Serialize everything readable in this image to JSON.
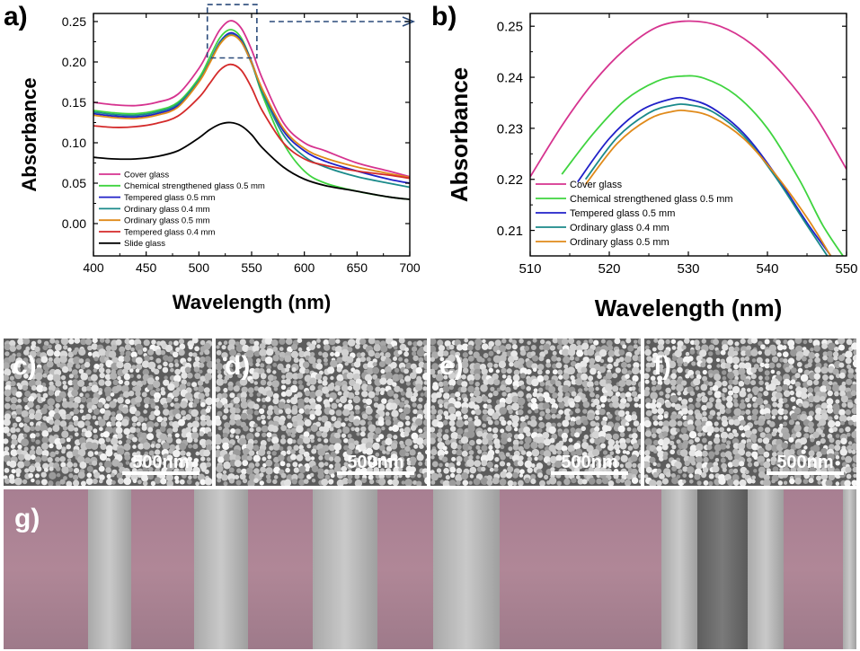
{
  "colors": {
    "cover": "#d6338f",
    "chemical": "#3fd43f",
    "tempered05": "#2020c8",
    "ordinary04": "#1a8a8a",
    "ordinary05": "#e08a1a",
    "tempered04": "#d42a2a",
    "slide": "#000000"
  },
  "chart_data": [
    {
      "id": "a",
      "type": "line",
      "panel_label": "a)",
      "xlabel": "Wavelength (nm)",
      "ylabel": "Absorbance",
      "xlim": [
        400,
        700
      ],
      "ylim": [
        -0.04,
        0.26
      ],
      "xticks": [
        "400",
        "450",
        "500",
        "550",
        "600",
        "650",
        "700"
      ],
      "yticks": [
        "0.00",
        "0.05",
        "0.10",
        "0.15",
        "0.20",
        "0.25"
      ],
      "legend": "lower-left",
      "zoom_box": {
        "x": [
          508,
          555
        ],
        "y": [
          0.205,
          0.271
        ]
      },
      "series": [
        {
          "name": "Cover glass",
          "color_key": "cover",
          "x": [
            400,
            420,
            440,
            460,
            480,
            500,
            510,
            520,
            530,
            540,
            550,
            560,
            580,
            600,
            620,
            650,
            680,
            700
          ],
          "y": [
            0.15,
            0.147,
            0.146,
            0.15,
            0.16,
            0.192,
            0.216,
            0.24,
            0.251,
            0.242,
            0.215,
            0.18,
            0.125,
            0.1,
            0.09,
            0.075,
            0.065,
            0.058
          ]
        },
        {
          "name": "Chemical strengthened glass 0.5 mm",
          "color_key": "chemical",
          "x": [
            400,
            420,
            440,
            460,
            480,
            500,
            510,
            520,
            530,
            540,
            550,
            560,
            580,
            600,
            620,
            650,
            680,
            700
          ],
          "y": [
            0.14,
            0.137,
            0.136,
            0.14,
            0.15,
            0.18,
            0.205,
            0.23,
            0.24,
            0.23,
            0.2,
            0.16,
            0.1,
            0.065,
            0.05,
            0.04,
            0.033,
            0.03
          ]
        },
        {
          "name": "Tempered glass 0.5 mm",
          "color_key": "tempered05",
          "x": [
            400,
            420,
            440,
            460,
            480,
            500,
            510,
            520,
            530,
            540,
            550,
            560,
            580,
            600,
            620,
            650,
            680,
            700
          ],
          "y": [
            0.136,
            0.133,
            0.132,
            0.136,
            0.146,
            0.176,
            0.2,
            0.225,
            0.236,
            0.227,
            0.2,
            0.166,
            0.115,
            0.09,
            0.077,
            0.065,
            0.055,
            0.05
          ]
        },
        {
          "name": "Ordinary glass 0.4 mm",
          "color_key": "ordinary04",
          "x": [
            400,
            420,
            440,
            460,
            480,
            500,
            510,
            520,
            530,
            540,
            550,
            560,
            580,
            600,
            620,
            650,
            680,
            700
          ],
          "y": [
            0.138,
            0.135,
            0.134,
            0.138,
            0.148,
            0.177,
            0.2,
            0.224,
            0.234,
            0.225,
            0.198,
            0.163,
            0.11,
            0.083,
            0.07,
            0.058,
            0.05,
            0.045
          ]
        },
        {
          "name": "Ordinary glass 0.5 mm",
          "color_key": "ordinary05",
          "x": [
            400,
            420,
            440,
            460,
            480,
            500,
            510,
            520,
            530,
            540,
            550,
            560,
            580,
            600,
            620,
            650,
            680,
            700
          ],
          "y": [
            0.134,
            0.131,
            0.13,
            0.134,
            0.144,
            0.175,
            0.198,
            0.222,
            0.233,
            0.225,
            0.199,
            0.167,
            0.118,
            0.093,
            0.081,
            0.07,
            0.062,
            0.057
          ]
        },
        {
          "name": "Tempered glass 0.4 mm",
          "color_key": "tempered04",
          "x": [
            400,
            420,
            440,
            460,
            480,
            500,
            510,
            520,
            530,
            540,
            550,
            560,
            580,
            600,
            620,
            650,
            680,
            700
          ],
          "y": [
            0.121,
            0.119,
            0.12,
            0.124,
            0.133,
            0.156,
            0.173,
            0.19,
            0.197,
            0.19,
            0.168,
            0.14,
            0.1,
            0.08,
            0.072,
            0.065,
            0.06,
            0.056
          ]
        },
        {
          "name": "Slide glass",
          "color_key": "slide",
          "x": [
            400,
            420,
            440,
            460,
            480,
            500,
            510,
            520,
            530,
            540,
            550,
            560,
            580,
            600,
            620,
            650,
            680,
            700
          ],
          "y": [
            0.082,
            0.08,
            0.08,
            0.083,
            0.09,
            0.106,
            0.116,
            0.123,
            0.125,
            0.121,
            0.11,
            0.094,
            0.07,
            0.055,
            0.047,
            0.04,
            0.033,
            0.03
          ]
        }
      ]
    },
    {
      "id": "b",
      "type": "line",
      "panel_label": "b)",
      "xlabel": "Wavelength (nm)",
      "ylabel": "Absorbance",
      "xlim": [
        510,
        550
      ],
      "ylim": [
        0.205,
        0.2525
      ],
      "xticks": [
        "510",
        "520",
        "530",
        "540",
        "550"
      ],
      "yticks": [
        "0.21",
        "0.22",
        "0.23",
        "0.24",
        "0.25"
      ],
      "legend": "lower-left",
      "series": [
        {
          "name": "Cover glass",
          "color_key": "cover",
          "x": [
            510,
            514,
            518,
            522,
            526,
            530,
            534,
            538,
            542,
            546,
            550
          ],
          "y": [
            0.2205,
            0.2305,
            0.239,
            0.2455,
            0.2498,
            0.251,
            0.25,
            0.2465,
            0.2405,
            0.2325,
            0.222
          ]
        },
        {
          "name": "Chemical strengthened glass 0.5 mm",
          "color_key": "chemical",
          "x": [
            514,
            518,
            522,
            526,
            529,
            532,
            536,
            540,
            544,
            547,
            550
          ],
          "y": [
            0.221,
            0.229,
            0.2355,
            0.2392,
            0.2402,
            0.2398,
            0.2365,
            0.23,
            0.22,
            0.211,
            0.204
          ]
        },
        {
          "name": "Tempered glass 0.5 mm",
          "color_key": "tempered05",
          "x": [
            516,
            520,
            524,
            528,
            530,
            533,
            537,
            541,
            545,
            548.5
          ],
          "y": [
            0.2195,
            0.228,
            0.2335,
            0.2358,
            0.2357,
            0.234,
            0.229,
            0.221,
            0.2115,
            0.204
          ]
        },
        {
          "name": "Ordinary glass 0.4 mm",
          "color_key": "ordinary04",
          "x": [
            517,
            521,
            525,
            528,
            530,
            533,
            537,
            541,
            545,
            548
          ],
          "y": [
            0.22,
            0.2282,
            0.233,
            0.2345,
            0.2346,
            0.2333,
            0.2285,
            0.2205,
            0.211,
            0.204
          ]
        },
        {
          "name": "Ordinary glass 0.5 mm",
          "color_key": "ordinary05",
          "x": [
            517,
            521,
            525,
            528,
            530,
            533,
            537,
            541,
            545,
            548
          ],
          "y": [
            0.219,
            0.227,
            0.2318,
            0.2333,
            0.2334,
            0.2322,
            0.228,
            0.221,
            0.2125,
            0.205
          ]
        }
      ]
    }
  ],
  "sem_panels": [
    {
      "label": "c)",
      "scale_text": "500nm"
    },
    {
      "label": "d)",
      "scale_text": "500nm"
    },
    {
      "label": "e)",
      "scale_text": "500nm"
    },
    {
      "label": "f)",
      "scale_text": "500nm"
    }
  ],
  "photo": {
    "label": "g)"
  }
}
